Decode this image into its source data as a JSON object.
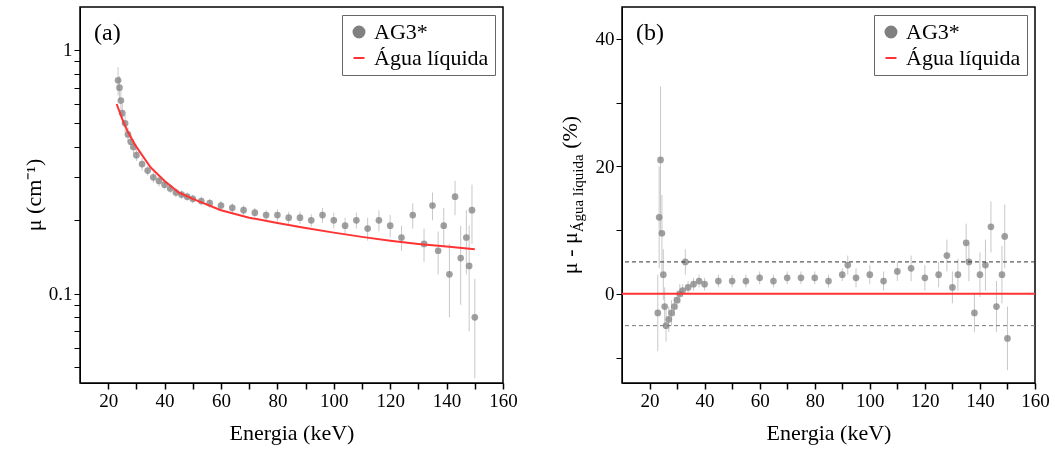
{
  "chart_data": [
    {
      "type": "scatter",
      "annotations": [
        "(a)"
      ],
      "xlabel": "Energia (keV)",
      "ylabel": "μ (cm⁻¹)",
      "log": "y",
      "xlim": [
        10,
        160
      ],
      "ylim": [
        0.043,
        1.5
      ],
      "xticks": [
        20,
        {
          "value": 30,
          "label": null
        },
        40,
        {
          "value": 50,
          "label": null
        },
        60,
        {
          "value": 70,
          "label": null
        },
        80,
        {
          "value": 90,
          "label": null
        },
        100,
        {
          "value": 110,
          "label": null
        },
        120,
        {
          "value": 130,
          "label": null
        },
        140,
        {
          "value": 150,
          "label": null
        },
        160
      ],
      "yticks": [
        {
          "value": 0.05,
          "label": null
        },
        {
          "value": 0.06,
          "label": null
        },
        {
          "value": 0.07,
          "label": null
        },
        {
          "value": 0.08,
          "label": null
        },
        {
          "value": 0.09,
          "label": null
        },
        0.1,
        {
          "value": 0.2,
          "label": null
        },
        {
          "value": 0.3,
          "label": null
        },
        {
          "value": 0.4,
          "label": null
        },
        {
          "value": 0.5,
          "label": null
        },
        {
          "value": 0.6,
          "label": null
        },
        {
          "value": 0.7,
          "label": null
        },
        {
          "value": 0.8,
          "label": null
        },
        {
          "value": 0.9,
          "label": null
        },
        1
      ],
      "grid": false,
      "legend": "top right",
      "series": [
        {
          "name": "AG3*",
          "type": "scatter",
          "marker": "circle",
          "color": "#808080",
          "x": [
            23.5,
            24,
            24.5,
            25,
            26,
            27,
            28,
            29,
            30,
            32,
            34,
            36,
            38,
            40,
            42,
            44,
            46,
            48,
            50,
            53,
            56,
            60,
            64,
            68,
            72,
            76,
            80,
            84,
            88,
            92,
            96,
            100,
            104,
            108,
            112,
            116,
            120,
            124,
            128,
            132,
            135,
            137,
            139,
            141,
            143,
            145,
            147,
            148,
            149,
            150
          ],
          "values": [
            0.75,
            0.7,
            0.62,
            0.55,
            0.5,
            0.45,
            0.42,
            0.4,
            0.37,
            0.34,
            0.32,
            0.3,
            0.29,
            0.28,
            0.27,
            0.26,
            0.255,
            0.25,
            0.245,
            0.24,
            0.235,
            0.23,
            0.225,
            0.22,
            0.215,
            0.21,
            0.21,
            0.205,
            0.205,
            0.2,
            0.21,
            0.2,
            0.19,
            0.2,
            0.185,
            0.2,
            0.19,
            0.17,
            0.21,
            0.16,
            0.23,
            0.15,
            0.19,
            0.12,
            0.25,
            0.14,
            0.17,
            0.13,
            0.22,
            0.08
          ],
          "errors": [
            0.1,
            0.08,
            0.06,
            0.05,
            0.04,
            0.03,
            0.03,
            0.025,
            0.02,
            0.02,
            0.015,
            0.015,
            0.015,
            0.012,
            0.012,
            0.012,
            0.01,
            0.01,
            0.01,
            0.01,
            0.01,
            0.01,
            0.01,
            0.01,
            0.01,
            0.01,
            0.012,
            0.012,
            0.012,
            0.012,
            0.015,
            0.015,
            0.015,
            0.015,
            0.02,
            0.02,
            0.02,
            0.02,
            0.025,
            0.025,
            0.03,
            0.03,
            0.035,
            0.04,
            0.04,
            0.05,
            0.05,
            0.06,
            0.06,
            0.035
          ]
        },
        {
          "name": "Água líquida",
          "type": "line",
          "color": "#ff3333",
          "x": [
            23,
            25,
            27,
            30,
            35,
            40,
            45,
            50,
            60,
            70,
            80,
            90,
            100,
            110,
            120,
            130,
            140,
            150
          ],
          "values": [
            0.6,
            0.52,
            0.46,
            0.4,
            0.33,
            0.29,
            0.26,
            0.245,
            0.22,
            0.205,
            0.195,
            0.186,
            0.178,
            0.171,
            0.165,
            0.16,
            0.156,
            0.152
          ]
        }
      ]
    },
    {
      "type": "scatter",
      "annotations": [
        "(b)"
      ],
      "xlabel": "Energia (keV)",
      "ylabel": "μ - μ$_{Água líquida}$ (%)",
      "xlim": [
        10,
        160
      ],
      "ylim": [
        -14,
        45
      ],
      "xticks": [
        20,
        {
          "value": 30,
          "label": null
        },
        40,
        {
          "value": 50,
          "label": null
        },
        60,
        {
          "value": 70,
          "label": null
        },
        80,
        {
          "value": 90,
          "label": null
        },
        100,
        {
          "value": 110,
          "label": null
        },
        120,
        {
          "value": 130,
          "label": null
        },
        140,
        {
          "value": 150,
          "label": null
        },
        160
      ],
      "yticks": [
        {
          "value": -10,
          "label": null
        },
        0,
        {
          "value": 10,
          "label": null
        },
        20,
        {
          "value": 30,
          "label": null
        },
        40
      ],
      "grid": false,
      "legend": "top right",
      "ref_lines": [
        {
          "axis": "y",
          "value": 5,
          "color": "#333333",
          "line_style": "dashed"
        },
        {
          "axis": "y",
          "value": -5,
          "color": "#777777",
          "line_style": "dashed"
        }
      ],
      "series": [
        {
          "name": "AG3*",
          "type": "scatter",
          "marker": "circle",
          "color": "#808080",
          "x": [
            23,
            23.5,
            24,
            24.5,
            25,
            25.5,
            26,
            27,
            28,
            29,
            30,
            31,
            32,
            33,
            34,
            36,
            38,
            40,
            45,
            50,
            55,
            60,
            65,
            70,
            75,
            80,
            85,
            90,
            92,
            95,
            100,
            105,
            110,
            115,
            120,
            125,
            128,
            130,
            132,
            135,
            136,
            138,
            140,
            142,
            144,
            146,
            148,
            149,
            150
          ],
          "values": [
            -3,
            12,
            21,
            9.5,
            3,
            -2,
            -5,
            -4,
            -3,
            -2,
            -1,
            0,
            0.5,
            5,
            1,
            1.5,
            2,
            1.5,
            2,
            2,
            2,
            2.5,
            2,
            2.5,
            2.5,
            2.5,
            2,
            3,
            4.5,
            2.5,
            3,
            2,
            3.5,
            4,
            2.5,
            3,
            6,
            1,
            3,
            8,
            5,
            -3,
            3,
            4.5,
            10.5,
            -2,
            3,
            9,
            -7
          ],
          "errors": [
            6,
            8,
            11.5,
            6,
            4,
            3,
            2.5,
            2,
            2,
            1.5,
            1.5,
            1.5,
            1,
            2,
            1,
            1,
            1,
            1,
            1,
            1,
            1,
            1,
            1,
            1,
            1,
            1,
            1,
            1,
            1.5,
            1.5,
            1.5,
            1.5,
            1.5,
            2,
            2,
            2,
            2.5,
            2.5,
            2.5,
            3,
            3,
            3,
            3.5,
            4,
            4,
            4,
            4.5,
            5,
            5
          ]
        },
        {
          "name": "Água líquida",
          "type": "line",
          "color": "#ff3333",
          "x": [
            10,
            160
          ],
          "values": [
            0,
            0
          ]
        }
      ]
    }
  ]
}
